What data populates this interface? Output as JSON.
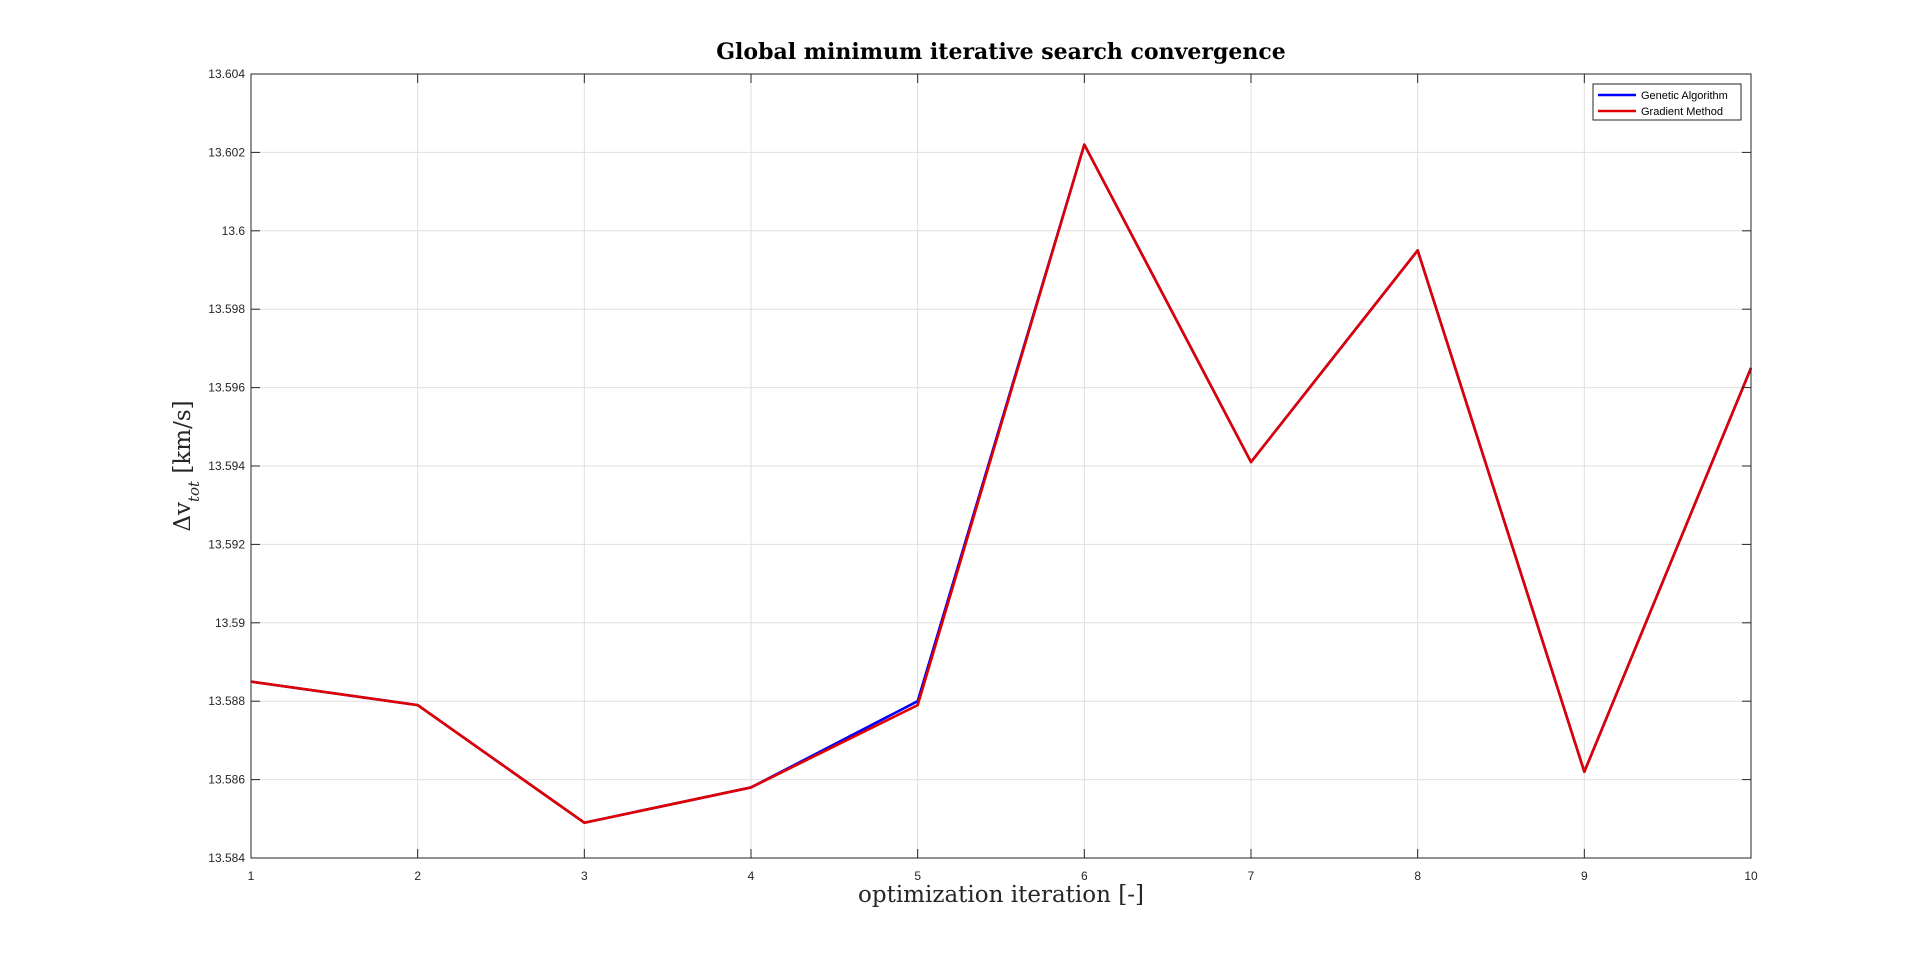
{
  "chart_data": {
    "type": "line",
    "title": "Global minimum iterative search convergence",
    "xlabel": "optimization iteration [-]",
    "ylabel": {
      "prefix": "Δv",
      "subscript": "tot",
      "unit": " [km/s]"
    },
    "x": [
      1,
      2,
      3,
      4,
      5,
      6,
      7,
      8,
      9,
      10
    ],
    "xlim": [
      1,
      10
    ],
    "ylim": [
      13.584,
      13.604
    ],
    "x_ticks": [
      "1",
      "2",
      "3",
      "4",
      "5",
      "6",
      "7",
      "8",
      "9",
      "10"
    ],
    "y_ticks": [
      13.584,
      13.586,
      13.588,
      13.59,
      13.592,
      13.594,
      13.596,
      13.598,
      13.6,
      13.602,
      13.604
    ],
    "y_tick_labels": [
      "13.584",
      "13.586",
      "13.588",
      "13.59",
      "13.592",
      "13.594",
      "13.596",
      "13.598",
      "13.6",
      "13.602",
      "13.604"
    ],
    "grid": true,
    "legend_position": "top-right",
    "series": [
      {
        "name": "Genetic Algorithm",
        "color": "#0000ff",
        "values": [
          13.5885,
          13.5879,
          13.5849,
          13.5858,
          13.588,
          13.6022,
          13.5941,
          13.5995,
          13.5862,
          13.5965
        ]
      },
      {
        "name": "Gradient Method",
        "color": "#e00000",
        "values": [
          13.5885,
          13.5879,
          13.5849,
          13.5858,
          13.5879,
          13.6022,
          13.5941,
          13.5995,
          13.5862,
          13.5965
        ]
      }
    ]
  }
}
